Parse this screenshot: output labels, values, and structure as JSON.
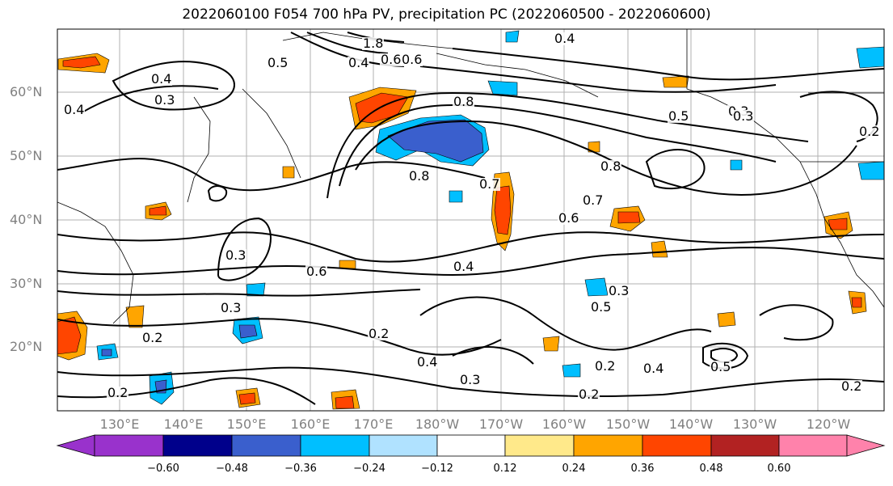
{
  "title": "2022060100 F054 700 hPa PV, precipitation PC (2022060500 - 2022060600)",
  "lat_labels": [
    "60°N",
    "50°N",
    "40°N",
    "30°N",
    "20°N"
  ],
  "lon_labels": [
    "130°E",
    "140°E",
    "150°E",
    "160°E",
    "170°E",
    "180°W",
    "170°W",
    "160°W",
    "150°W",
    "140°W",
    "130°W",
    "120°W"
  ],
  "contour_labels": [
    "1.8",
    "0.6",
    "0.4",
    "0.6",
    "0.4",
    "0.4",
    "0.3",
    "0.5",
    "0.4",
    "0.8",
    "0.8",
    "0.7",
    "0.8",
    "0.5",
    "0.3",
    "0.2",
    "0.7",
    "0.6",
    "0.3",
    "0.6",
    "0.4",
    "0.3",
    "0.2",
    "0.3",
    "0.2",
    "0.4",
    "0.3",
    "0.2",
    "0.4",
    "0.5",
    "0.3",
    "0.5",
    "0.2",
    "0.2",
    "0.2"
  ],
  "colorbar": {
    "ticks": [
      "−0.60",
      "−0.48",
      "−0.36",
      "−0.24",
      "−0.12",
      "0.12",
      "0.24",
      "0.36",
      "0.48",
      "0.60"
    ],
    "colors": [
      "#9932CC",
      "#00008B",
      "#3A5FCD",
      "#00BFFF",
      "#B0E2FF",
      "#FFFFFF",
      "#FFE98A",
      "#FFA500",
      "#FF4500",
      "#B22222",
      "#FF82AB"
    ]
  }
}
